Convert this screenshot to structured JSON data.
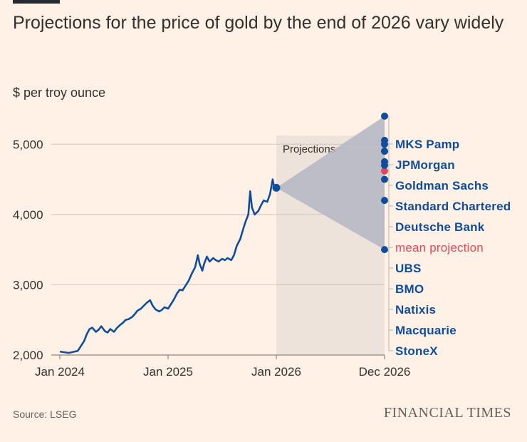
{
  "title": "Projections for the price of gold by the end of 2026 vary widely",
  "subtitle": "$ per troy ounce",
  "source": "Source: LSEG",
  "brand": "FINANCIAL TIMES",
  "colors": {
    "background": "#FFF1E5",
    "line": "#0F4C9B",
    "mean": "#E0475B",
    "band": "#B6B8C4",
    "projection_bg": "#EDE3DA",
    "grid": "#CEC6BD"
  },
  "chart_data": {
    "type": "line",
    "title": "Projections for the price of gold by the end of 2026 vary widely",
    "ylabel": "$ per troy ounce",
    "ylim": [
      2000,
      5500
    ],
    "yticks": [
      2000,
      3000,
      4000,
      5000
    ],
    "ytick_labels": [
      "2,000",
      "3,000",
      "4,000",
      "5,000"
    ],
    "xlim": [
      "2024-01",
      "2026-12"
    ],
    "xticks": [
      {
        "label": "Jan 2024",
        "t": 0
      },
      {
        "label": "Jan 2025",
        "t": 12
      },
      {
        "label": "Jan 2026",
        "t": 24
      },
      {
        "label": "Dec 2026",
        "t": 36
      }
    ],
    "projection_label": "Projections",
    "projection_start_t": 24,
    "projection_end_t": 36,
    "series": [
      {
        "name": "Gold price",
        "points": [
          [
            0,
            2050
          ],
          [
            0.5,
            2040
          ],
          [
            1,
            2030
          ],
          [
            1.5,
            2045
          ],
          [
            2,
            2060
          ],
          [
            2.3,
            2120
          ],
          [
            2.7,
            2200
          ],
          [
            3,
            2300
          ],
          [
            3.3,
            2370
          ],
          [
            3.6,
            2390
          ],
          [
            4,
            2330
          ],
          [
            4.3,
            2360
          ],
          [
            4.6,
            2410
          ],
          [
            5,
            2340
          ],
          [
            5.3,
            2320
          ],
          [
            5.6,
            2370
          ],
          [
            6,
            2330
          ],
          [
            6.3,
            2380
          ],
          [
            6.7,
            2430
          ],
          [
            7,
            2460
          ],
          [
            7.3,
            2500
          ],
          [
            7.6,
            2510
          ],
          [
            8,
            2540
          ],
          [
            8.3,
            2580
          ],
          [
            8.6,
            2630
          ],
          [
            9,
            2660
          ],
          [
            9.3,
            2700
          ],
          [
            9.6,
            2740
          ],
          [
            10,
            2780
          ],
          [
            10.3,
            2700
          ],
          [
            10.6,
            2650
          ],
          [
            11,
            2620
          ],
          [
            11.3,
            2640
          ],
          [
            11.6,
            2680
          ],
          [
            12,
            2660
          ],
          [
            12.3,
            2720
          ],
          [
            12.6,
            2780
          ],
          [
            13,
            2880
          ],
          [
            13.3,
            2930
          ],
          [
            13.6,
            2920
          ],
          [
            14,
            3000
          ],
          [
            14.3,
            3060
          ],
          [
            14.6,
            3150
          ],
          [
            15,
            3250
          ],
          [
            15.3,
            3420
          ],
          [
            15.5,
            3300
          ],
          [
            15.8,
            3200
          ],
          [
            16,
            3300
          ],
          [
            16.3,
            3400
          ],
          [
            16.6,
            3330
          ],
          [
            17,
            3380
          ],
          [
            17.3,
            3350
          ],
          [
            17.6,
            3330
          ],
          [
            18,
            3370
          ],
          [
            18.3,
            3350
          ],
          [
            18.6,
            3380
          ],
          [
            19,
            3350
          ],
          [
            19.3,
            3420
          ],
          [
            19.6,
            3550
          ],
          [
            20,
            3650
          ],
          [
            20.3,
            3780
          ],
          [
            20.6,
            3900
          ],
          [
            20.9,
            4000
          ],
          [
            21.1,
            4330
          ],
          [
            21.3,
            4100
          ],
          [
            21.6,
            4000
          ],
          [
            22,
            4050
          ],
          [
            22.3,
            4130
          ],
          [
            22.6,
            4200
          ],
          [
            23,
            4180
          ],
          [
            23.3,
            4290
          ],
          [
            23.6,
            4500
          ],
          [
            23.8,
            4350
          ],
          [
            24,
            4380
          ]
        ]
      }
    ],
    "projection_range": {
      "start": 4380,
      "high": 5400,
      "low": 3500
    },
    "mean_projection": 4620,
    "forecasts": [
      {
        "name": "MKS Pamp",
        "value": 5400
      },
      {
        "name": "JPMorgan",
        "value": 5055
      },
      {
        "name": "Goldman Sachs",
        "value": 4900
      },
      {
        "name": "Standard Chartered",
        "value": 4750
      },
      {
        "name": "Deutsche Bank",
        "value": 4200
      },
      {
        "name": "mean projection",
        "value": 4620,
        "is_mean": true
      },
      {
        "name": "UBS",
        "value": 3500
      },
      {
        "name": "BMO",
        "value": 4500
      },
      {
        "name": "Natixis",
        "value": 4900
      },
      {
        "name": "Macquarie",
        "value": 4700
      },
      {
        "name": "StoneX",
        "value": 5000
      }
    ]
  }
}
